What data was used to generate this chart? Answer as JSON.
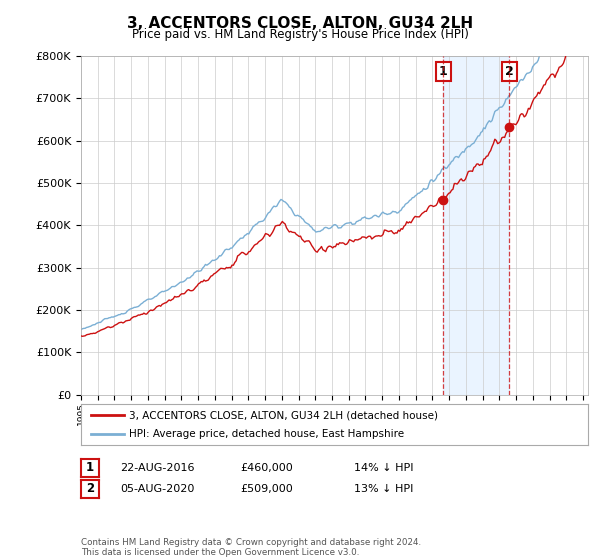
{
  "title": "3, ACCENTORS CLOSE, ALTON, GU34 2LH",
  "subtitle": "Price paid vs. HM Land Registry's House Price Index (HPI)",
  "legend_line1": "3, ACCENTORS CLOSE, ALTON, GU34 2LH (detached house)",
  "legend_line2": "HPI: Average price, detached house, East Hampshire",
  "annotation1_label": "1",
  "annotation1_date": "22-AUG-2016",
  "annotation1_price": "£460,000",
  "annotation1_pct": "14% ↓ HPI",
  "annotation2_label": "2",
  "annotation2_date": "05-AUG-2020",
  "annotation2_price": "£509,000",
  "annotation2_pct": "13% ↓ HPI",
  "footer": "Contains HM Land Registry data © Crown copyright and database right 2024.\nThis data is licensed under the Open Government Licence v3.0.",
  "hpi_color": "#7bafd4",
  "hpi_fill_color": "#ddeeff",
  "sale_color": "#cc1111",
  "dashed_line_color": "#cc1111",
  "annotation_box_color": "#cc1111",
  "background_color": "#ffffff",
  "grid_color": "#cccccc",
  "ylim": [
    0,
    800000
  ],
  "yticks": [
    0,
    100000,
    200000,
    300000,
    400000,
    500000,
    600000,
    700000,
    800000
  ],
  "year_start": 1995,
  "year_end": 2025,
  "sale1_year": 2016.64,
  "sale1_price": 460000,
  "sale2_year": 2020.59,
  "sale2_price": 509000
}
